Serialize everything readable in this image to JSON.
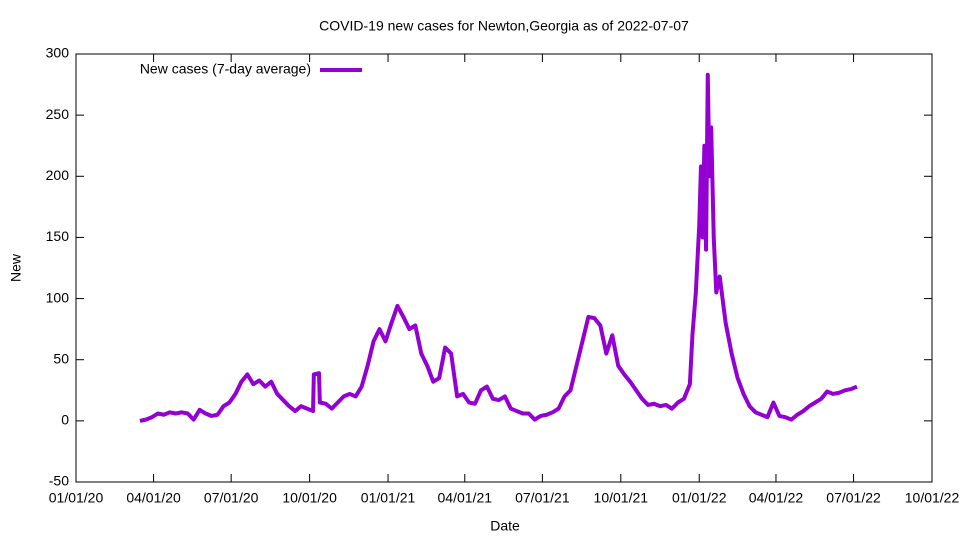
{
  "chart_data": {
    "type": "line",
    "title": "COVID-19 new cases for Newton,Georgia as of 2022-07-07",
    "x_label": "Date",
    "y_label": "New",
    "legend": "top-left",
    "xlim": [
      "2020-01-01",
      "2022-10-01"
    ],
    "xticks": [
      {
        "value": "2020-01-01",
        "label": "01/01/20"
      },
      {
        "value": "2020-04-01",
        "label": "04/01/20"
      },
      {
        "value": "2020-07-01",
        "label": "07/01/20"
      },
      {
        "value": "2020-10-01",
        "label": "10/01/20"
      },
      {
        "value": "2021-01-01",
        "label": "01/01/21"
      },
      {
        "value": "2021-04-01",
        "label": "04/01/21"
      },
      {
        "value": "2021-07-01",
        "label": "07/01/21"
      },
      {
        "value": "2021-10-01",
        "label": "10/01/21"
      },
      {
        "value": "2022-01-01",
        "label": "01/01/22"
      },
      {
        "value": "2022-04-01",
        "label": "04/01/22"
      },
      {
        "value": "2022-07-01",
        "label": "07/01/22"
      },
      {
        "value": "2022-10-01",
        "label": "10/01/22"
      }
    ],
    "ylim": [
      -50,
      300
    ],
    "yticks": [
      -50,
      0,
      50,
      100,
      150,
      200,
      250,
      300
    ],
    "x": [
      "2020-03-16",
      "2020-03-23",
      "2020-03-30",
      "2020-04-06",
      "2020-04-13",
      "2020-04-20",
      "2020-04-27",
      "2020-05-04",
      "2020-05-11",
      "2020-05-18",
      "2020-05-25",
      "2020-06-01",
      "2020-06-08",
      "2020-06-15",
      "2020-06-22",
      "2020-06-29",
      "2020-07-06",
      "2020-07-13",
      "2020-07-20",
      "2020-07-27",
      "2020-08-03",
      "2020-08-10",
      "2020-08-17",
      "2020-08-24",
      "2020-08-31",
      "2020-09-07",
      "2020-09-14",
      "2020-09-21",
      "2020-09-28",
      "2020-10-05",
      "2020-10-06",
      "2020-10-12",
      "2020-10-13",
      "2020-10-20",
      "2020-10-27",
      "2020-11-03",
      "2020-11-10",
      "2020-11-17",
      "2020-11-24",
      "2020-12-01",
      "2020-12-08",
      "2020-12-15",
      "2020-12-22",
      "2020-12-29",
      "2021-01-05",
      "2021-01-12",
      "2021-01-19",
      "2021-01-26",
      "2021-02-02",
      "2021-02-09",
      "2021-02-16",
      "2021-02-23",
      "2021-03-02",
      "2021-03-09",
      "2021-03-16",
      "2021-03-23",
      "2021-03-30",
      "2021-04-06",
      "2021-04-13",
      "2021-04-20",
      "2021-04-27",
      "2021-05-04",
      "2021-05-11",
      "2021-05-18",
      "2021-05-25",
      "2021-06-01",
      "2021-06-08",
      "2021-06-15",
      "2021-06-22",
      "2021-06-29",
      "2021-07-06",
      "2021-07-13",
      "2021-07-20",
      "2021-07-27",
      "2021-08-03",
      "2021-08-10",
      "2021-08-17",
      "2021-08-24",
      "2021-08-31",
      "2021-09-07",
      "2021-09-14",
      "2021-09-21",
      "2021-09-28",
      "2021-10-05",
      "2021-10-12",
      "2021-10-19",
      "2021-10-26",
      "2021-11-02",
      "2021-11-09",
      "2021-11-16",
      "2021-11-23",
      "2021-11-30",
      "2021-12-07",
      "2021-12-14",
      "2021-12-21",
      "2021-12-24",
      "2021-12-28",
      "2022-01-01",
      "2022-01-03",
      "2022-01-05",
      "2022-01-07",
      "2022-01-09",
      "2022-01-11",
      "2022-01-13",
      "2022-01-15",
      "2022-01-18",
      "2022-01-21",
      "2022-01-25",
      "2022-02-01",
      "2022-02-08",
      "2022-02-15",
      "2022-02-22",
      "2022-03-01",
      "2022-03-08",
      "2022-03-15",
      "2022-03-22",
      "2022-03-29",
      "2022-04-05",
      "2022-04-12",
      "2022-04-19",
      "2022-04-26",
      "2022-05-03",
      "2022-05-10",
      "2022-05-17",
      "2022-05-24",
      "2022-05-31",
      "2022-06-07",
      "2022-06-14",
      "2022-06-21",
      "2022-06-28",
      "2022-07-05"
    ],
    "series": [
      {
        "name": "New cases (7-day average)",
        "color": "#9400d3",
        "values": [
          0,
          1,
          3,
          6,
          5,
          7,
          6,
          7,
          6,
          1,
          9,
          6,
          4,
          5,
          12,
          15,
          22,
          32,
          38,
          30,
          33,
          28,
          32,
          22,
          17,
          12,
          8,
          12,
          10,
          8,
          38,
          39,
          15,
          14,
          10,
          15,
          20,
          22,
          20,
          28,
          45,
          65,
          75,
          65,
          80,
          94,
          85,
          75,
          78,
          55,
          45,
          32,
          35,
          60,
          55,
          20,
          22,
          15,
          14,
          25,
          28,
          18,
          17,
          20,
          10,
          8,
          6,
          6,
          1,
          4,
          5,
          7,
          10,
          20,
          25,
          45,
          65,
          85,
          84,
          78,
          55,
          70,
          45,
          38,
          32,
          25,
          18,
          13,
          14,
          12,
          13,
          10,
          15,
          18,
          30,
          70,
          105,
          160,
          208,
          150,
          225,
          140,
          283,
          200,
          240,
          150,
          105,
          118,
          80,
          55,
          35,
          22,
          12,
          7,
          5,
          3,
          15,
          4,
          3,
          1,
          5,
          8,
          12,
          15,
          18,
          24,
          22,
          23,
          25,
          26,
          28
        ]
      }
    ]
  }
}
